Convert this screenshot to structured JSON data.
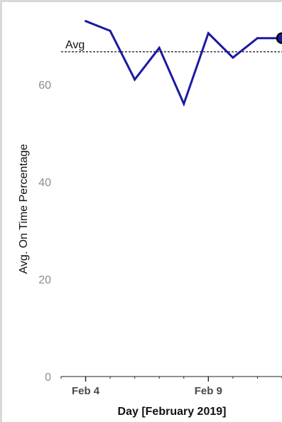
{
  "chart_data": {
    "type": "line",
    "xlabel": "Day [February 2019]",
    "ylabel": "Avg. On Time Percentage",
    "x_domain": [
      "2019-02-03",
      "2019-02-12"
    ],
    "ylim": [
      0,
      75
    ],
    "y_ticks": [
      0,
      20,
      40,
      60
    ],
    "x_ticks": [
      {
        "date": "2019-02-03",
        "label": ""
      },
      {
        "date": "2019-02-04",
        "label": "Feb 4"
      },
      {
        "date": "2019-02-05",
        "label": ""
      },
      {
        "date": "2019-02-06",
        "label": ""
      },
      {
        "date": "2019-02-07",
        "label": ""
      },
      {
        "date": "2019-02-08",
        "label": ""
      },
      {
        "date": "2019-02-09",
        "label": "Feb 9"
      },
      {
        "date": "2019-02-10",
        "label": ""
      },
      {
        "date": "2019-02-11",
        "label": ""
      },
      {
        "date": "2019-02-12",
        "label": ""
      }
    ],
    "grid": false,
    "series": [
      {
        "x": [
          "2019-02-04",
          "2019-02-05",
          "2019-02-06",
          "2019-02-07",
          "2019-02-08",
          "2019-02-09",
          "2019-02-10",
          "2019-02-11",
          "2019-02-12"
        ],
        "values": [
          73,
          71,
          61,
          67.5,
          56,
          70.5,
          65.5,
          69.5,
          69.5
        ],
        "color": "#1a1aa0",
        "highlight_last": true
      }
    ],
    "reference_line": {
      "label": "Avg",
      "value": 66.7,
      "style": "dashed"
    }
  }
}
